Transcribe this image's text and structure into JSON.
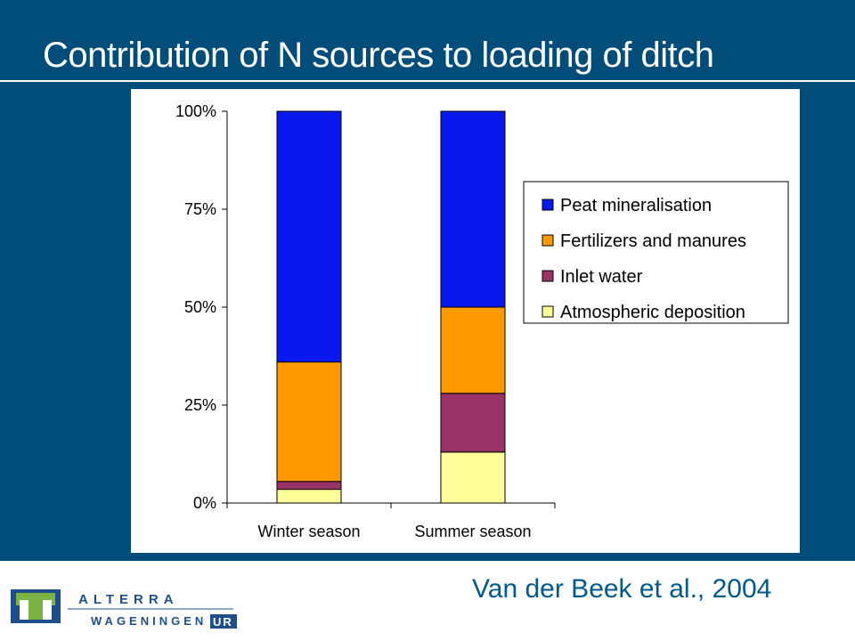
{
  "slide": {
    "title": "Contribution of N sources to loading of ditch",
    "citation": "Van der Beek et al., 2004"
  },
  "logo": {
    "line1": "ALTERRA",
    "line2": "WAGENINGEN",
    "line2_suffix": "UR"
  },
  "colors": {
    "background": "#004d7a",
    "citation": "#005a8c",
    "peat": "#0a18f0",
    "fertilizers": "#ff9900",
    "inlet": "#993366",
    "atmospheric": "#ffff99"
  },
  "chart_data": {
    "type": "bar",
    "stacked": true,
    "percent": true,
    "categories": [
      "Winter season",
      "Summer season"
    ],
    "series": [
      {
        "name": "Atmospheric deposition",
        "values": [
          3.5,
          13
        ],
        "color": "#ffff99"
      },
      {
        "name": "Inlet water",
        "values": [
          2,
          15
        ],
        "color": "#993366"
      },
      {
        "name": "Fertilizers and manures",
        "values": [
          30.5,
          22
        ],
        "color": "#ff9900"
      },
      {
        "name": "Peat mineralisation",
        "values": [
          64,
          50
        ],
        "color": "#0a18f0"
      }
    ],
    "legend_order": [
      "Peat mineralisation",
      "Fertilizers and manures",
      "Inlet water",
      "Atmospheric deposition"
    ],
    "yticks": [
      "0%",
      "25%",
      "50%",
      "75%",
      "100%"
    ],
    "ylim": [
      0,
      100
    ],
    "grid": false,
    "legend_position": "right"
  }
}
